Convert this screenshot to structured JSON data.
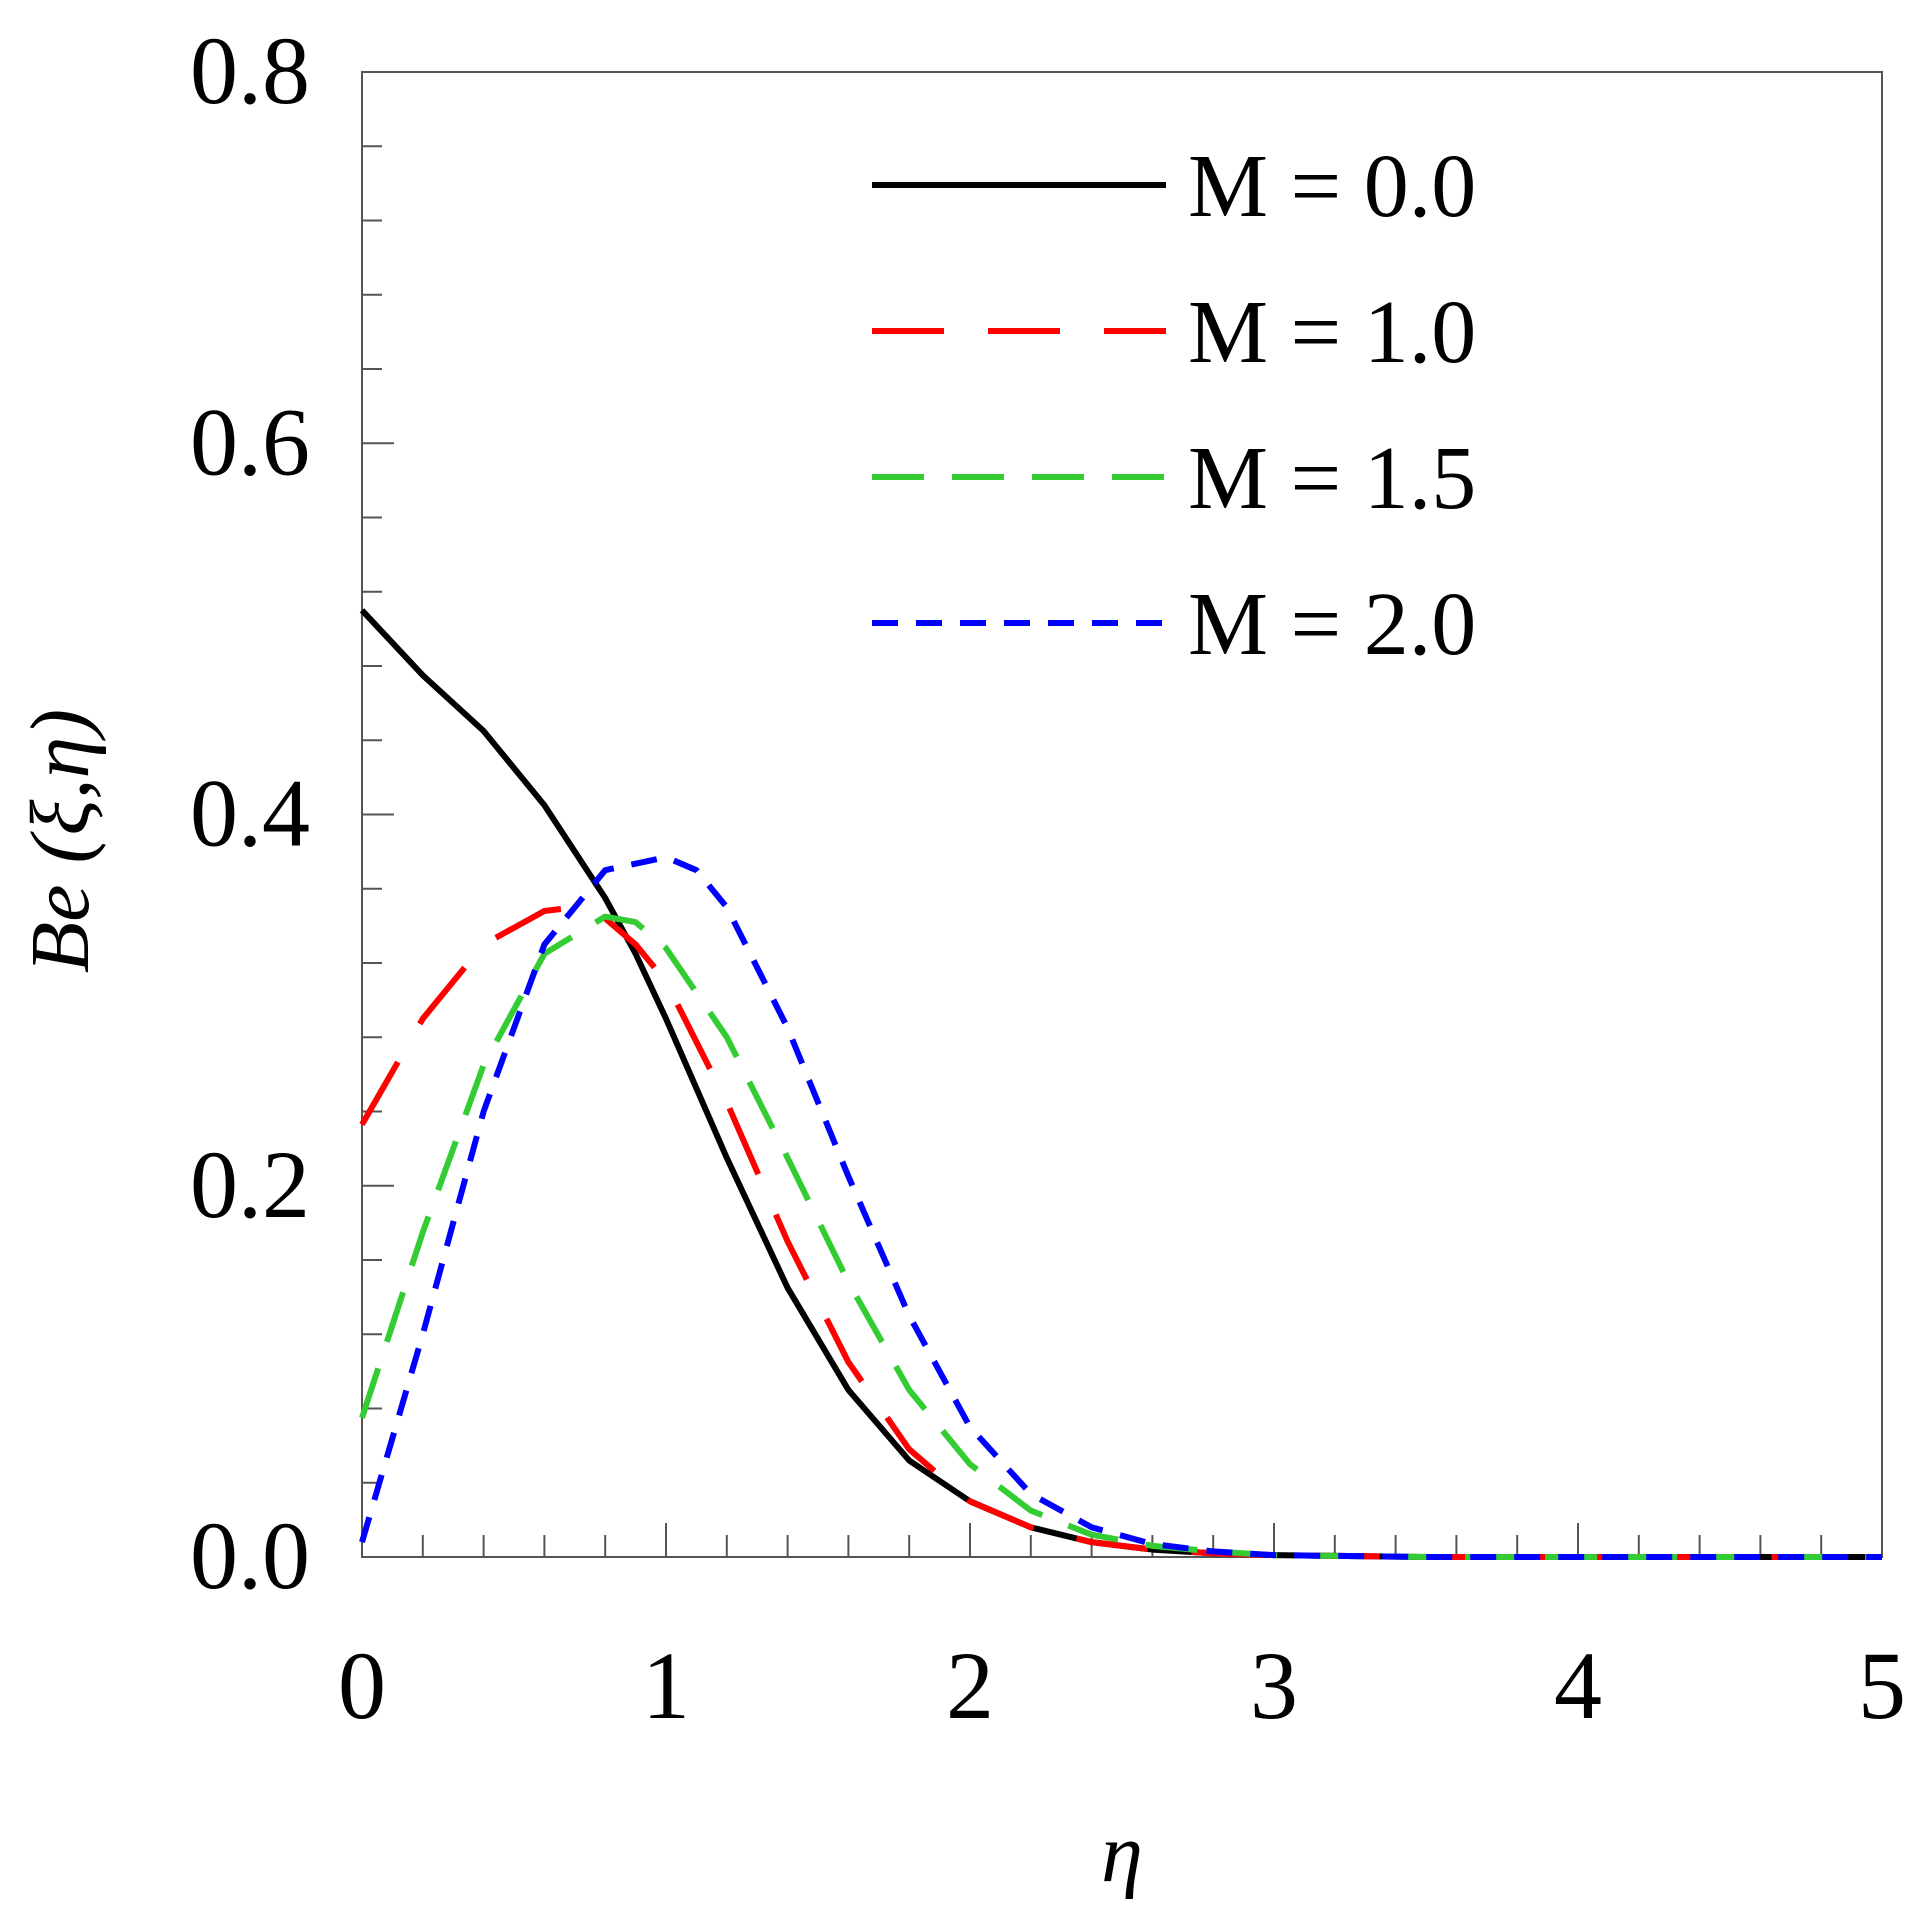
{
  "chart_data": {
    "type": "line",
    "title": "",
    "xlabel": "η",
    "ylabel": "Be (ξ,η)",
    "xlim": [
      0,
      5
    ],
    "ylim": [
      0,
      0.8
    ],
    "x_ticks": [
      0,
      1,
      2,
      3,
      4,
      5
    ],
    "x_tick_labels": [
      "0",
      "1",
      "2",
      "3",
      "4",
      "5"
    ],
    "y_ticks": [
      0.0,
      0.2,
      0.4,
      0.6,
      0.8
    ],
    "y_tick_labels": [
      "0.0",
      "0.2",
      "0.4",
      "0.6",
      "0.8"
    ],
    "x_minor_step": 0.2,
    "y_minor_step": 0.04,
    "grid": false,
    "legend_position": "top-right",
    "series": [
      {
        "name": "M = 0.0",
        "color": "#000000",
        "style": "solid",
        "x": [
          0,
          0.2,
          0.4,
          0.6,
          0.8,
          0.9,
          1.0,
          1.2,
          1.4,
          1.6,
          1.8,
          2.0,
          2.2,
          2.4,
          2.6,
          2.8,
          3.0,
          3.5,
          4.0,
          4.5,
          5.0
        ],
        "y": [
          0.51,
          0.475,
          0.445,
          0.405,
          0.355,
          0.325,
          0.29,
          0.215,
          0.145,
          0.09,
          0.052,
          0.03,
          0.016,
          0.008,
          0.004,
          0.002,
          0.001,
          0.0,
          0.0,
          0.0,
          0.0
        ]
      },
      {
        "name": "M = 1.0",
        "color": "#ff0000",
        "style": "long-dash",
        "x": [
          0,
          0.2,
          0.4,
          0.6,
          0.7,
          0.8,
          0.9,
          1.0,
          1.2,
          1.4,
          1.6,
          1.8,
          2.0,
          2.2,
          2.4,
          2.6,
          2.8,
          3.0,
          3.5,
          4.0,
          4.5,
          5.0
        ],
        "y": [
          0.233,
          0.29,
          0.33,
          0.348,
          0.35,
          0.344,
          0.33,
          0.31,
          0.245,
          0.17,
          0.105,
          0.058,
          0.03,
          0.016,
          0.008,
          0.004,
          0.002,
          0.001,
          0.0,
          0.0,
          0.0,
          0.0
        ]
      },
      {
        "name": "M = 1.5",
        "color": "#33cc33",
        "style": "medium-dash",
        "x": [
          0,
          0.2,
          0.4,
          0.6,
          0.8,
          0.9,
          1.0,
          1.2,
          1.4,
          1.6,
          1.8,
          2.0,
          2.2,
          2.4,
          2.6,
          2.8,
          3.0,
          3.5,
          4.0,
          4.5,
          5.0
        ],
        "y": [
          0.075,
          0.175,
          0.265,
          0.325,
          0.345,
          0.342,
          0.328,
          0.28,
          0.215,
          0.148,
          0.09,
          0.05,
          0.025,
          0.012,
          0.006,
          0.003,
          0.001,
          0.0,
          0.0,
          0.0,
          0.0
        ]
      },
      {
        "name": "M = 2.0",
        "color": "#0000ff",
        "style": "short-dash",
        "x": [
          0,
          0.2,
          0.4,
          0.6,
          0.8,
          1.0,
          1.1,
          1.2,
          1.4,
          1.6,
          1.8,
          2.0,
          2.2,
          2.4,
          2.6,
          2.8,
          3.0,
          3.5,
          4.0,
          4.5,
          5.0
        ],
        "y": [
          0.008,
          0.12,
          0.24,
          0.33,
          0.37,
          0.377,
          0.37,
          0.35,
          0.285,
          0.205,
          0.13,
          0.07,
          0.034,
          0.016,
          0.007,
          0.003,
          0.001,
          0.0,
          0.0,
          0.0,
          0.0
        ]
      }
    ]
  }
}
